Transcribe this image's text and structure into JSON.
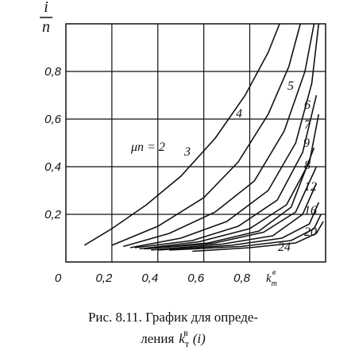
{
  "chart_data": {
    "type": "line",
    "ylabel": {
      "num": "i",
      "den": "n"
    },
    "xlabel": {
      "base": "k",
      "sub": "т",
      "sup": "в"
    },
    "xlim": [
      0,
      1.13
    ],
    "ylim": [
      0,
      1
    ],
    "xticks": [
      {
        "value": 0,
        "label": "0"
      },
      {
        "value": 0.2,
        "label": "0,2"
      },
      {
        "value": 0.4,
        "label": "0,4"
      },
      {
        "value": 0.6,
        "label": "0,6"
      },
      {
        "value": 0.8,
        "label": "0,8"
      }
    ],
    "yticks": [
      {
        "value": 0.2,
        "label": "0,2"
      },
      {
        "value": 0.4,
        "label": "0,4"
      },
      {
        "value": 0.6,
        "label": "0,6"
      },
      {
        "value": 0.8,
        "label": "0,8"
      }
    ],
    "grid": true,
    "color": "#111",
    "series": [
      {
        "name": "μn = 2",
        "x": [
          0.08,
          0.2,
          0.35,
          0.5,
          0.65,
          0.78,
          0.88,
          0.93
        ],
        "values": [
          0.07,
          0.14,
          0.24,
          0.36,
          0.52,
          0.7,
          0.88,
          1.0
        ]
      },
      {
        "name": "3",
        "x": [
          0.2,
          0.4,
          0.6,
          0.75,
          0.88,
          0.97,
          1.02
        ],
        "values": [
          0.07,
          0.15,
          0.27,
          0.42,
          0.62,
          0.82,
          1.0
        ]
      },
      {
        "name": "4",
        "x": [
          0.25,
          0.45,
          0.65,
          0.82,
          0.95,
          1.04,
          1.08
        ],
        "values": [
          0.065,
          0.12,
          0.21,
          0.34,
          0.55,
          0.8,
          1.0
        ]
      },
      {
        "name": "5",
        "x": [
          0.28,
          0.5,
          0.7,
          0.88,
          1.0,
          1.07,
          1.1
        ],
        "values": [
          0.06,
          0.1,
          0.17,
          0.3,
          0.5,
          0.75,
          1.0
        ]
      },
      {
        "name": "6",
        "x": [
          0.3,
          0.55,
          0.75,
          0.92,
          1.03,
          1.09
        ],
        "values": [
          0.06,
          0.09,
          0.15,
          0.26,
          0.46,
          0.7
        ]
      },
      {
        "name": "7",
        "x": [
          0.32,
          0.58,
          0.8,
          0.96,
          1.06,
          1.1
        ],
        "values": [
          0.055,
          0.085,
          0.14,
          0.24,
          0.42,
          0.62
        ]
      },
      {
        "name": "9",
        "x": [
          0.34,
          0.62,
          0.84,
          0.98,
          1.08
        ],
        "values": [
          0.055,
          0.08,
          0.13,
          0.23,
          0.48
        ]
      },
      {
        "name": "8",
        "x": [
          0.35,
          0.64,
          0.86,
          1.0,
          1.09
        ],
        "values": [
          0.055,
          0.078,
          0.125,
          0.21,
          0.4
        ]
      },
      {
        "name": "12",
        "x": [
          0.37,
          0.68,
          0.9,
          1.03,
          1.09
        ],
        "values": [
          0.05,
          0.075,
          0.11,
          0.2,
          0.33
        ]
      },
      {
        "name": "16",
        "x": [
          0.4,
          0.72,
          0.94,
          1.06,
          1.1
        ],
        "values": [
          0.05,
          0.07,
          0.1,
          0.16,
          0.25
        ]
      },
      {
        "name": "20",
        "x": [
          0.45,
          0.76,
          0.98,
          1.08,
          1.11
        ],
        "values": [
          0.05,
          0.065,
          0.09,
          0.14,
          0.2
        ]
      },
      {
        "name": "24",
        "x": [
          0.55,
          0.8,
          1.0,
          1.09,
          1.12
        ],
        "values": [
          0.045,
          0.06,
          0.08,
          0.12,
          0.17
        ]
      }
    ],
    "caption": [
      "Рис. 8.11. График для опреде-",
      "ления"
    ],
    "caption_symbol": {
      "base": "k",
      "sub": "т",
      "sup": "в"
    },
    "caption_arg": "(i)"
  }
}
